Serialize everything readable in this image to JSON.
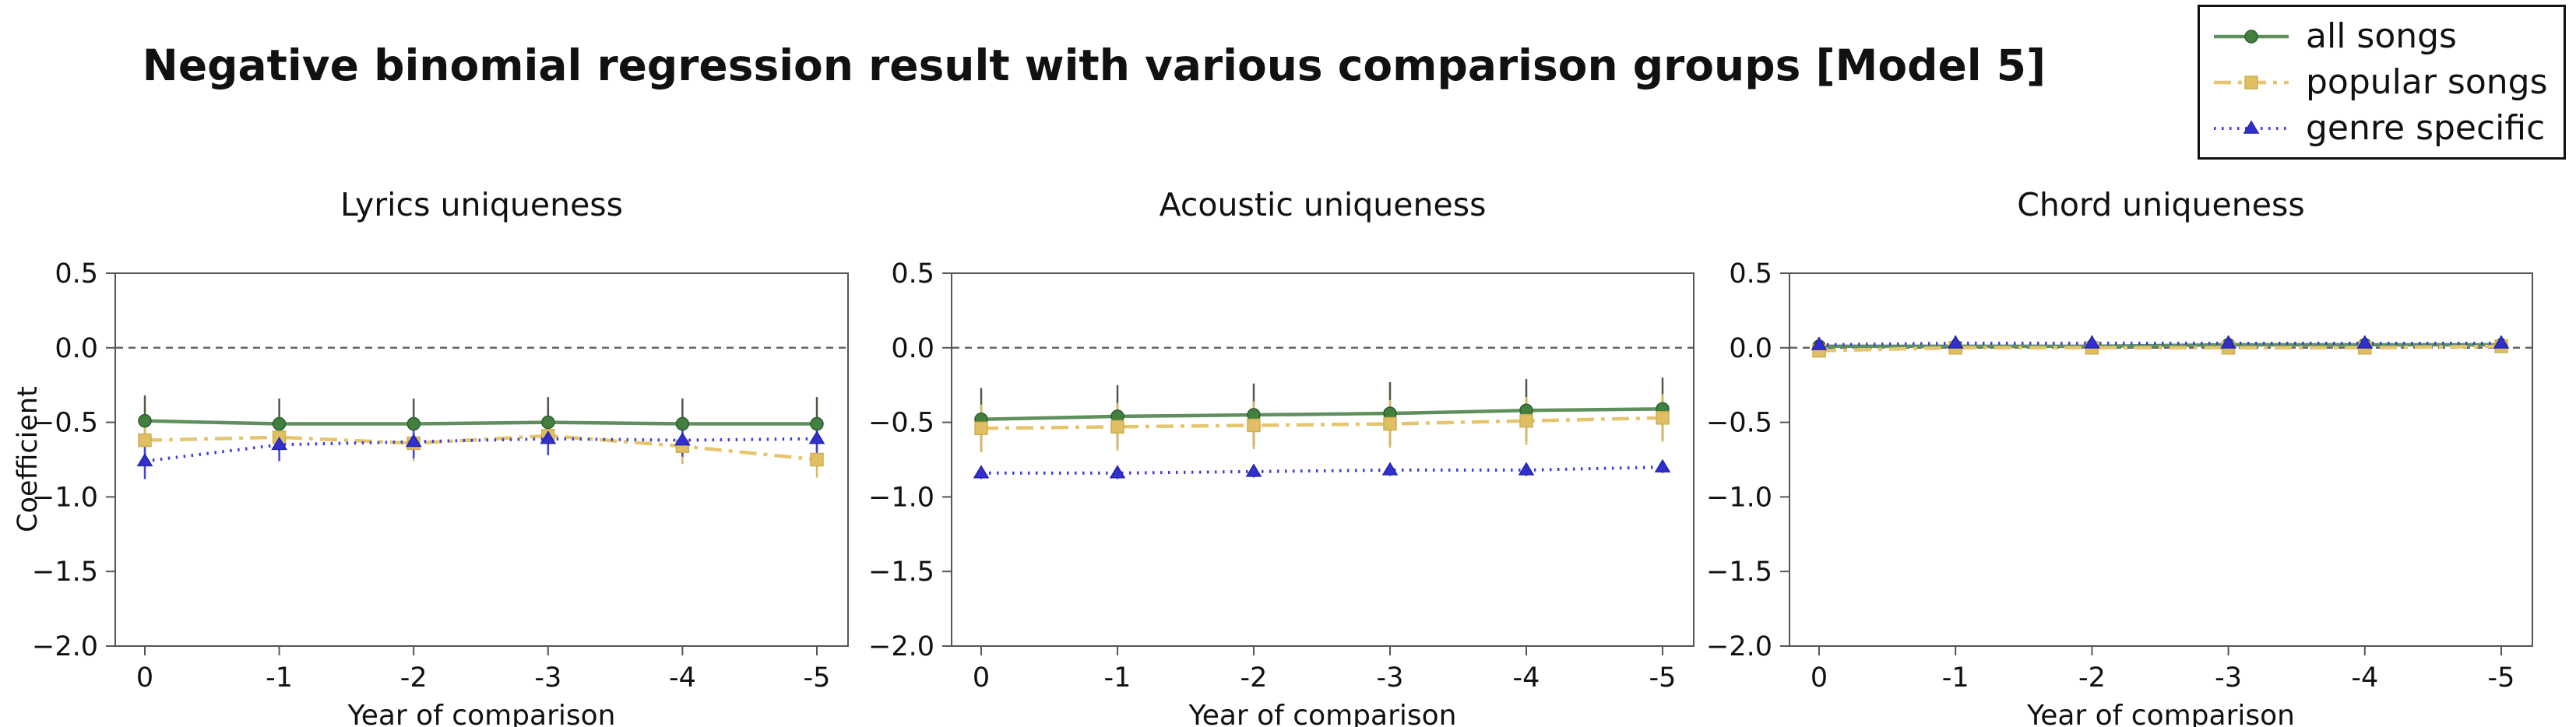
{
  "figure": {
    "title": "Negative binomial regression result with various comparison groups [Model 5]",
    "background": "#ffffff"
  },
  "legend": {
    "items": [
      {
        "label": "all songs",
        "series": "all_songs"
      },
      {
        "label": "popular songs",
        "series": "popular_songs"
      },
      {
        "label": "genre specific",
        "series": "genre_specific"
      }
    ]
  },
  "styles": {
    "all_songs": {
      "color": "#5f8f5c",
      "marker_fill": "#41803f",
      "marker_edge": "#2d5c32",
      "marker": "circle",
      "dash": "",
      "line_width": 4.5,
      "err_color": "#4d5a47"
    },
    "popular_songs": {
      "color": "#e5c66e",
      "marker_fill": "#e0be63",
      "marker_edge": "#cfae51",
      "marker": "square",
      "dash": "22 9 5 9",
      "line_width": 4.5,
      "err_color": "#d9b75f"
    },
    "genre_specific": {
      "color": "#3d3cdd",
      "marker_fill": "#3130cc",
      "marker_edge": "#2424b0",
      "marker": "triangle",
      "dash": "2.5 7.5",
      "line_width": 4.0,
      "err_color": "#4443d8"
    }
  },
  "axes": {
    "ylabel": "Coefficient",
    "xlabel": "Year of comparison",
    "ytick_labels": [
      "0.5",
      "0.0",
      "−0.5",
      "−1.0",
      "−1.5",
      "−2.0"
    ],
    "ytick_values": [
      0.5,
      0.0,
      -0.5,
      -1.0,
      -1.5,
      -2.0
    ],
    "xtick_labels": [
      "0",
      "-1",
      "-2",
      "-3",
      "-4",
      "-5"
    ],
    "xtick_values": [
      0,
      -1,
      -2,
      -3,
      -4,
      -5
    ],
    "ylim": [
      -2.0,
      0.5
    ],
    "zero_line": true,
    "zero_line_color": "#666666",
    "spine_color": "#555555"
  },
  "chart_data": [
    {
      "type": "line",
      "title": "Lyrics uniqueness",
      "xlabel": "Year of comparison",
      "ylabel": "Coefficient",
      "x": [
        0,
        -1,
        -2,
        -3,
        -4,
        -5
      ],
      "ylim": [
        -2.0,
        0.5
      ],
      "series": [
        {
          "key": "all_songs",
          "name": "all songs",
          "values": [
            -0.49,
            -0.51,
            -0.51,
            -0.5,
            -0.51,
            -0.51
          ],
          "errors": [
            0.17,
            0.17,
            0.17,
            0.17,
            0.17,
            0.18
          ]
        },
        {
          "key": "popular_songs",
          "name": "popular songs",
          "values": [
            -0.62,
            -0.6,
            -0.64,
            -0.59,
            -0.66,
            -0.75
          ],
          "errors": [
            0.12,
            0.12,
            0.12,
            0.12,
            0.12,
            0.12
          ]
        },
        {
          "key": "genre_specific",
          "name": "genre specific",
          "values": [
            -0.76,
            -0.65,
            -0.63,
            -0.61,
            -0.62,
            -0.61
          ],
          "errors": [
            0.12,
            0.11,
            0.11,
            0.11,
            0.11,
            0.11
          ]
        }
      ]
    },
    {
      "type": "line",
      "title": "Acoustic uniqueness",
      "xlabel": "Year of comparison",
      "ylabel": "Coefficient",
      "x": [
        0,
        -1,
        -2,
        -3,
        -4,
        -5
      ],
      "ylim": [
        -2.0,
        0.5
      ],
      "series": [
        {
          "key": "all_songs",
          "name": "all songs",
          "values": [
            -0.48,
            -0.46,
            -0.45,
            -0.44,
            -0.42,
            -0.41
          ],
          "errors": [
            0.21,
            0.21,
            0.21,
            0.21,
            0.21,
            0.21
          ]
        },
        {
          "key": "popular_songs",
          "name": "popular songs",
          "values": [
            -0.54,
            -0.53,
            -0.52,
            -0.51,
            -0.49,
            -0.47
          ],
          "errors": [
            0.16,
            0.16,
            0.16,
            0.16,
            0.16,
            0.16
          ]
        },
        {
          "key": "genre_specific",
          "name": "genre specific",
          "values": [
            -0.84,
            -0.84,
            -0.83,
            -0.82,
            -0.82,
            -0.8
          ],
          "errors": [
            0.04,
            0.04,
            0.04,
            0.04,
            0.04,
            0.04
          ]
        }
      ]
    },
    {
      "type": "line",
      "title": "Chord uniqueness",
      "xlabel": "Year of comparison",
      "ylabel": "Coefficient",
      "x": [
        0,
        -1,
        -2,
        -3,
        -4,
        -5
      ],
      "ylim": [
        -2.0,
        0.5
      ],
      "series": [
        {
          "key": "all_songs",
          "name": "all songs",
          "values": [
            0.01,
            0.01,
            0.01,
            0.02,
            0.02,
            0.02
          ],
          "errors": [
            0.03,
            0.03,
            0.03,
            0.03,
            0.03,
            0.03
          ]
        },
        {
          "key": "popular_songs",
          "name": "popular songs",
          "values": [
            -0.02,
            0.0,
            0.0,
            0.0,
            0.0,
            0.01
          ],
          "errors": [
            0.04,
            0.04,
            0.04,
            0.04,
            0.04,
            0.04
          ]
        },
        {
          "key": "genre_specific",
          "name": "genre specific",
          "values": [
            0.02,
            0.03,
            0.03,
            0.03,
            0.03,
            0.03
          ],
          "errors": [
            0.05,
            0.05,
            0.05,
            0.05,
            0.05,
            0.05
          ]
        }
      ]
    }
  ]
}
